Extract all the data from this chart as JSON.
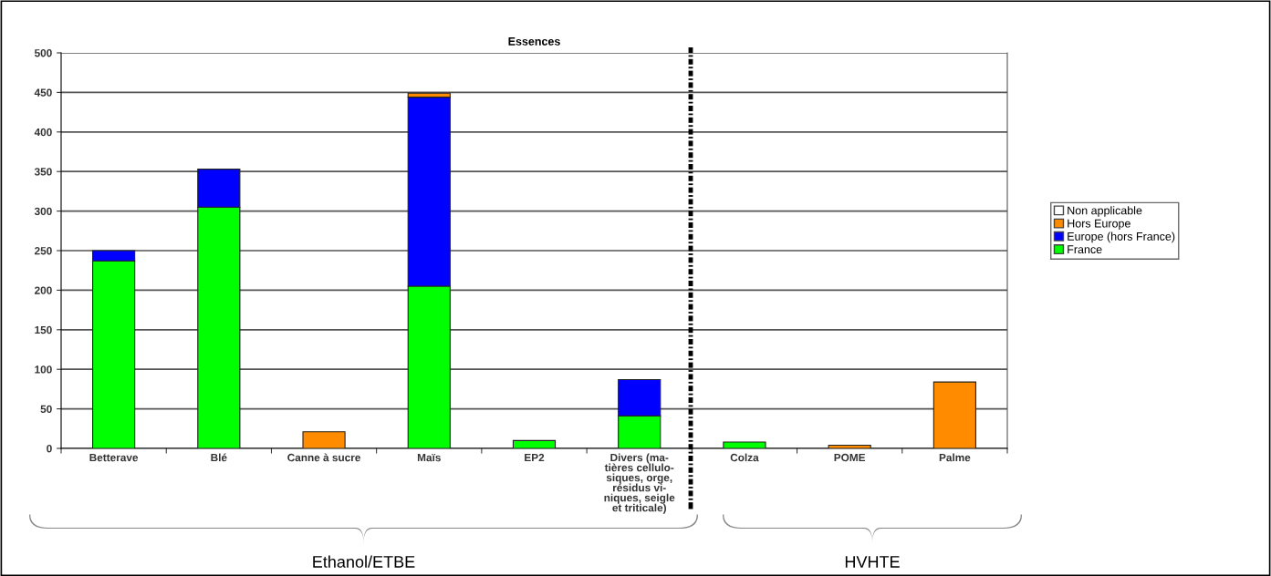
{
  "chart_data": {
    "type": "bar",
    "title": "Essences",
    "stacked": true,
    "categories": [
      "Betterave",
      "Blé",
      "Canne à sucre",
      "Maïs",
      "EP2",
      "Divers (ma-\ntières cellulo-\nsiques, orge,\nrésidus vi-\nniques, seigle\net triticale)",
      "Colza",
      "POME",
      "Palme"
    ],
    "series": [
      {
        "name": "France",
        "color": "#00ff00",
        "values": [
          237,
          305,
          0,
          205,
          10,
          41,
          8,
          0,
          0
        ]
      },
      {
        "name": "Europe (hors France)",
        "color": "#0000ff",
        "values": [
          13,
          48,
          0,
          239,
          0,
          46,
          0,
          0,
          0
        ]
      },
      {
        "name": "Hors Europe",
        "color": "#ff8c00",
        "values": [
          0,
          0,
          21,
          5,
          0,
          0,
          0,
          4,
          84
        ]
      },
      {
        "name": "Non applicable",
        "color": "#ffffff",
        "values": [
          null,
          null,
          null,
          null,
          null,
          null,
          null,
          null,
          null
        ]
      }
    ],
    "ylim": [
      0,
      500
    ],
    "yticks": [
      0,
      50,
      100,
      150,
      200,
      250,
      300,
      350,
      400,
      450,
      500
    ],
    "grid": "y",
    "legend": "right",
    "annotations": [
      "Ethanol/ETBE",
      "HVHTE"
    ]
  }
}
